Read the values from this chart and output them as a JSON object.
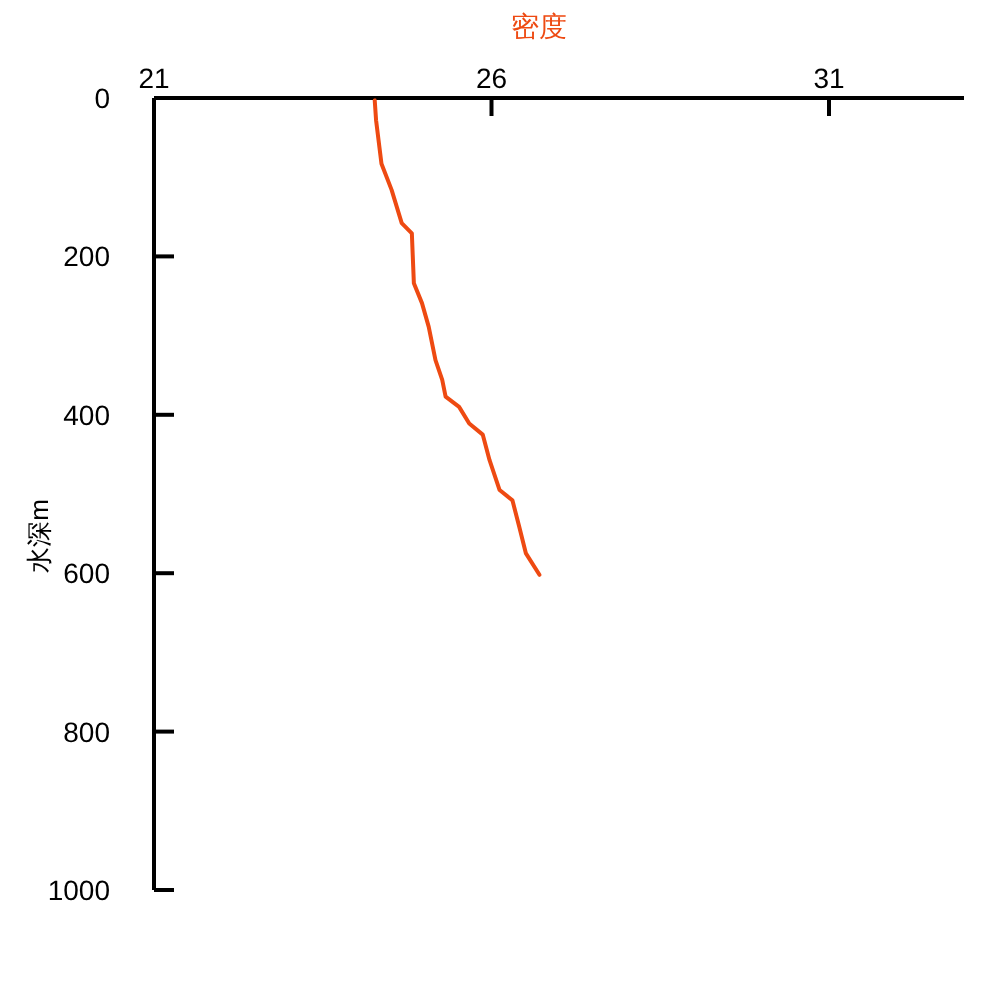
{
  "chart_data": {
    "type": "line",
    "xlabel": "密度",
    "ylabel": "水深m",
    "xlim": [
      21,
      33
    ],
    "xticks": [
      21,
      26,
      31
    ],
    "ylim": [
      1000,
      0
    ],
    "yticks": [
      0,
      200,
      400,
      600,
      800,
      1000
    ],
    "grid": false,
    "marker": "none",
    "line_style": "solid",
    "series": [
      {
        "color": "#ee4a12",
        "x": [
          24.27,
          24.29,
          24.37,
          24.52,
          24.67,
          24.82,
          24.85,
          24.97,
          25.07,
          25.17,
          25.27,
          25.32,
          25.52,
          25.67,
          25.87,
          25.97,
          26.12,
          26.31,
          26.41,
          26.51,
          26.71
        ],
        "values": [
          3,
          28,
          83,
          116,
          158,
          171,
          234,
          259,
          289,
          331,
          356,
          377,
          390,
          411,
          425,
          457,
          495,
          508,
          541,
          575,
          602
        ]
      }
    ]
  }
}
